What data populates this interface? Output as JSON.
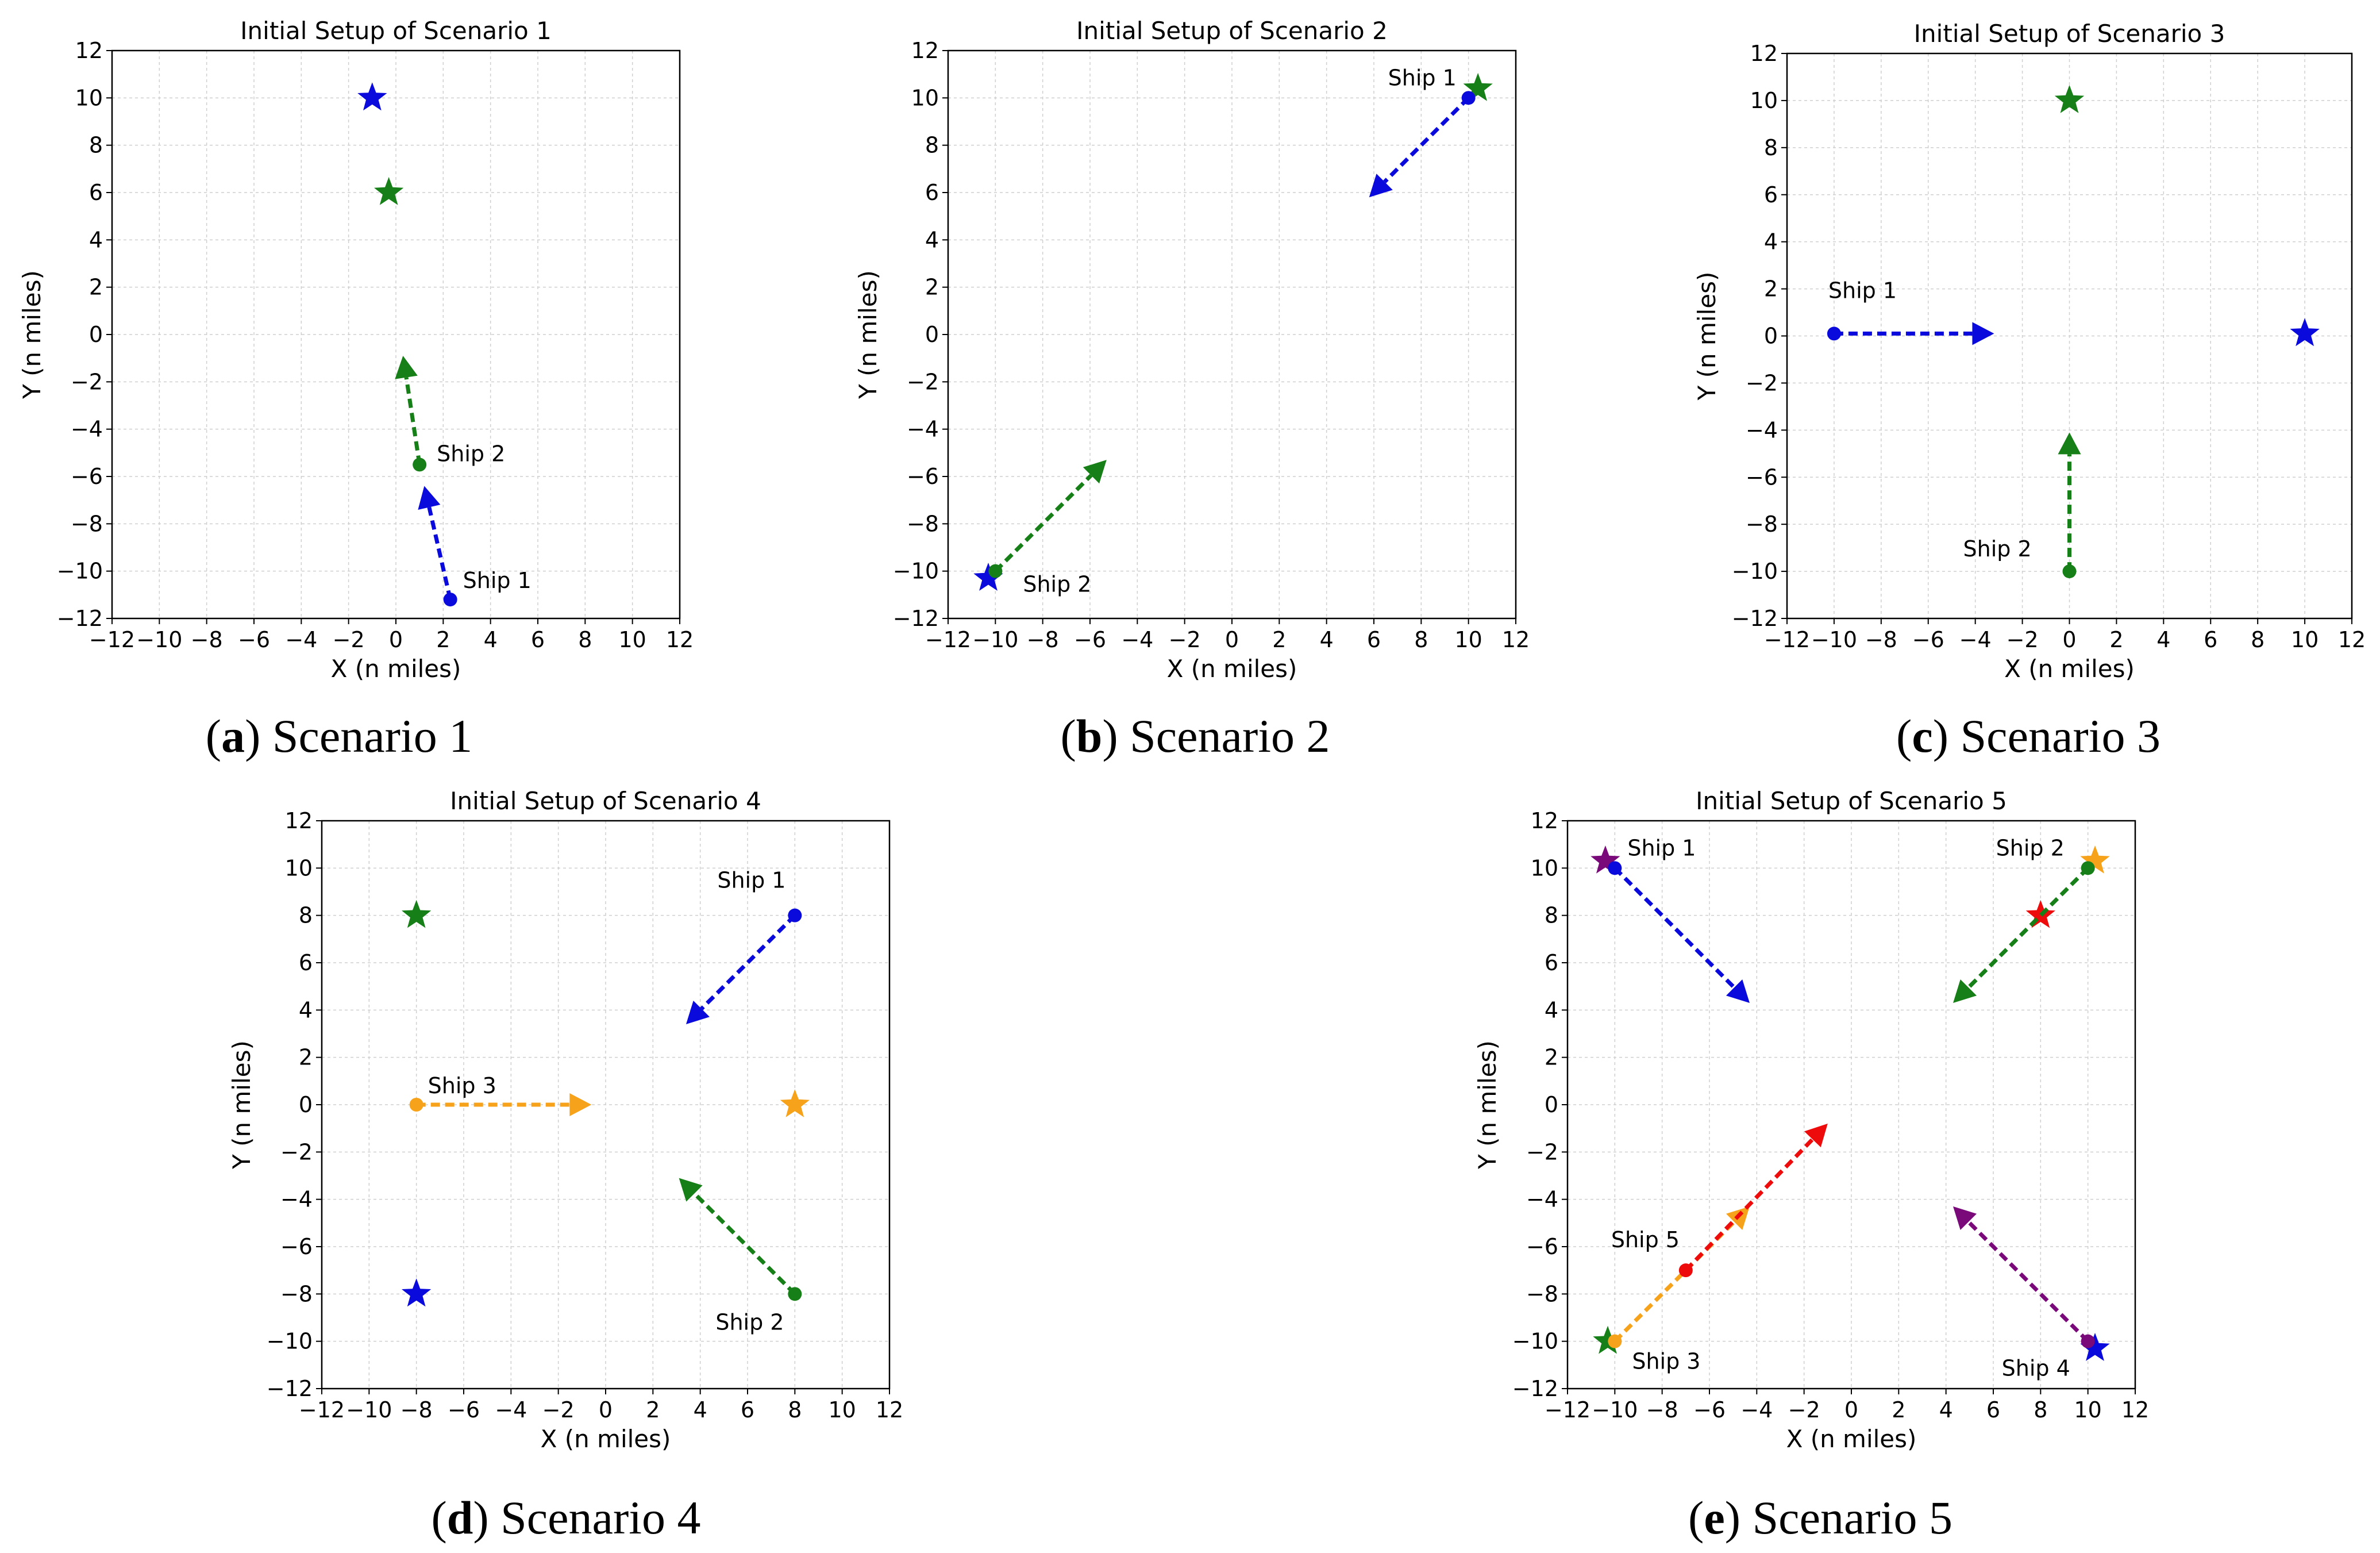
{
  "axis_labels": {
    "xlabel": "X (n miles)",
    "ylabel": "Y (n miles)"
  },
  "axis_range": {
    "xlim": [
      -12,
      12
    ],
    "ylim": [
      -12,
      12
    ],
    "ticks": [
      -12,
      -10,
      -8,
      -6,
      -4,
      -2,
      0,
      2,
      4,
      6,
      8,
      10,
      12
    ]
  },
  "colors": {
    "blue": "#0a0adc",
    "green": "#177f17",
    "orange": "#f7a21b",
    "red": "#ee0b0b",
    "purple": "#7a0a7a",
    "grid": "#cfcfcf"
  },
  "chart_data": [
    {
      "type": "scatter",
      "title": "Initial Setup of Scenario 1",
      "caption": {
        "letter": "a",
        "text": "Scenario 1"
      },
      "ships": [
        {
          "name": "Ship 1",
          "color": "blue",
          "start": [
            2.3,
            -11.2
          ],
          "arrow_end": [
            1.2,
            -6.4
          ],
          "goal": [
            -1,
            10
          ]
        },
        {
          "name": "Ship 2",
          "color": "green",
          "start": [
            1,
            -5.5
          ],
          "arrow_end": [
            0.3,
            -0.9
          ],
          "goal": [
            -0.3,
            6
          ]
        }
      ]
    },
    {
      "type": "scatter",
      "title": "Initial Setup of Scenario 2",
      "caption": {
        "letter": "b",
        "text": "Scenario 2"
      },
      "ships": [
        {
          "name": "Ship 1",
          "color": "blue",
          "start": [
            10,
            10
          ],
          "arrow_end": [
            5.8,
            5.8
          ],
          "goal": [
            -10.3,
            -10.3
          ]
        },
        {
          "name": "Ship 2",
          "color": "green",
          "start": [
            -10,
            -10
          ],
          "arrow_end": [
            -5.3,
            -5.3
          ],
          "goal": [
            10.4,
            10.4
          ]
        }
      ]
    },
    {
      "type": "scatter",
      "title": "Initial Setup of Scenario 3",
      "caption": {
        "letter": "c",
        "text": "Scenario 3"
      },
      "ships": [
        {
          "name": "Ship 1",
          "color": "blue",
          "start": [
            -10,
            0.1
          ],
          "arrow_end": [
            -3.2,
            0.1
          ],
          "goal": [
            10,
            0.1
          ]
        },
        {
          "name": "Ship 2",
          "color": "green",
          "start": [
            0,
            -10
          ],
          "arrow_end": [
            0,
            -4.1
          ],
          "goal": [
            0,
            10
          ]
        }
      ]
    },
    {
      "type": "scatter",
      "title": "Initial Setup of Scenario 4",
      "caption": {
        "letter": "d",
        "text": "Scenario 4"
      },
      "ships": [
        {
          "name": "Ship 1",
          "color": "blue",
          "start": [
            8,
            8
          ],
          "arrow_end": [
            3.4,
            3.4
          ],
          "goal": [
            -8,
            -8
          ]
        },
        {
          "name": "Ship 2",
          "color": "green",
          "start": [
            8,
            -8
          ],
          "arrow_end": [
            3.1,
            -3.1
          ],
          "goal": [
            -8,
            8
          ]
        },
        {
          "name": "Ship 3",
          "color": "orange",
          "start": [
            -8,
            0
          ],
          "arrow_end": [
            -0.6,
            0
          ],
          "goal": [
            8,
            0
          ]
        }
      ]
    },
    {
      "type": "scatter",
      "title": "Initial Setup of Scenario 5",
      "caption": {
        "letter": "e",
        "text": "Scenario 5"
      },
      "ships": [
        {
          "name": "Ship 1",
          "color": "blue",
          "start": [
            -10,
            10
          ],
          "arrow_end": [
            -4.3,
            4.3
          ],
          "goal": [
            10.3,
            -10.3
          ]
        },
        {
          "name": "Ship 2",
          "color": "green",
          "start": [
            10,
            10
          ],
          "arrow_end": [
            4.3,
            4.3
          ],
          "goal": [
            -10.3,
            -10
          ]
        },
        {
          "name": "Ship 3",
          "color": "orange",
          "start": [
            -10,
            -10
          ],
          "arrow_end": [
            -4.3,
            -4.3
          ],
          "goal": [
            10.3,
            10.3
          ]
        },
        {
          "name": "Ship 4",
          "color": "purple",
          "start": [
            10,
            -10
          ],
          "arrow_end": [
            4.3,
            -4.3
          ],
          "goal": [
            -10.4,
            10.3
          ]
        },
        {
          "name": "Ship 5",
          "color": "red",
          "start": [
            -7,
            -7
          ],
          "arrow_end": [
            -1,
            -0.8
          ],
          "goal": [
            8,
            8
          ]
        }
      ]
    }
  ]
}
